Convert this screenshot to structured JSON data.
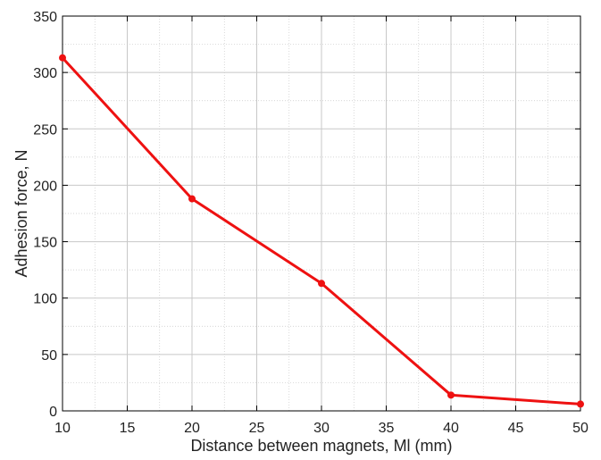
{
  "chart_data": {
    "type": "line",
    "xlabel": "Distance  between  magnets,  Ml  (mm)",
    "ylabel": "Adhesion  force,  N",
    "xlim": [
      10,
      50
    ],
    "ylim": [
      0,
      350
    ],
    "x_ticks": [
      10,
      15,
      20,
      25,
      30,
      35,
      40,
      45,
      50
    ],
    "y_ticks": [
      0,
      50,
      100,
      150,
      200,
      250,
      300,
      350
    ],
    "grid": true,
    "series": [
      {
        "color": "#ee1111",
        "points": [
          {
            "x": 10,
            "y": 313
          },
          {
            "x": 20,
            "y": 188
          },
          {
            "x": 30,
            "y": 113
          },
          {
            "x": 40,
            "y": 14
          },
          {
            "x": 50,
            "y": 6
          }
        ]
      }
    ]
  }
}
